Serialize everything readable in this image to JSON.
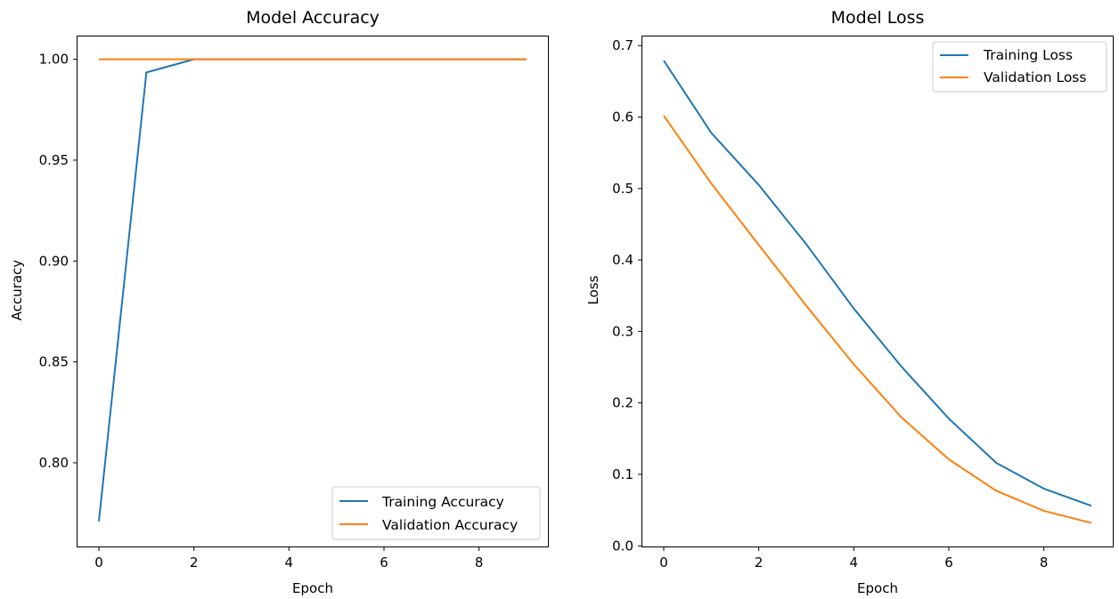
{
  "colors": {
    "training": "#1f77b4",
    "validation": "#ff7f0e"
  },
  "chart_data": [
    {
      "type": "line",
      "title": "Model Accuracy",
      "xlabel": "Epoch",
      "ylabel": "Accuracy",
      "xlim": [
        -0.45,
        9.45
      ],
      "ylim": [
        0.7585,
        1.0113
      ],
      "xticks": [
        0,
        2,
        4,
        6,
        8
      ],
      "xtick_labels": [
        "0",
        "2",
        "4",
        "6",
        "8"
      ],
      "yticks": [
        0.8,
        0.85,
        0.9,
        0.95,
        1.0
      ],
      "ytick_labels": [
        "0.80",
        "0.85",
        "0.90",
        "0.95",
        "1.00"
      ],
      "grid": false,
      "legend_position": "lower-right",
      "x": [
        0,
        1,
        2,
        3,
        4,
        5,
        6,
        7,
        8,
        9
      ],
      "series": [
        {
          "name": "Training Accuracy",
          "color_key": "training",
          "values": [
            0.771,
            0.9935,
            1.0,
            1.0,
            1.0,
            1.0,
            1.0,
            1.0,
            1.0,
            1.0
          ]
        },
        {
          "name": "Validation Accuracy",
          "color_key": "validation",
          "values": [
            1.0,
            1.0,
            1.0,
            1.0,
            1.0,
            1.0,
            1.0,
            1.0,
            1.0,
            1.0
          ]
        }
      ]
    },
    {
      "type": "line",
      "title": "Model Loss",
      "xlabel": "Epoch",
      "ylabel": "Loss",
      "xlim": [
        -0.45,
        9.45
      ],
      "ylim": [
        -0.0009,
        0.7127
      ],
      "xticks": [
        0,
        2,
        4,
        6,
        8
      ],
      "xtick_labels": [
        "0",
        "2",
        "4",
        "6",
        "8"
      ],
      "yticks": [
        0.0,
        0.1,
        0.2,
        0.3,
        0.4,
        0.5,
        0.6,
        0.7
      ],
      "ytick_labels": [
        "0.0",
        "0.1",
        "0.2",
        "0.3",
        "0.4",
        "0.5",
        "0.6",
        "0.7"
      ],
      "grid": false,
      "legend_position": "upper-right",
      "x": [
        0,
        1,
        2,
        3,
        4,
        5,
        6,
        7,
        8,
        9
      ],
      "series": [
        {
          "name": "Training Loss",
          "color_key": "training",
          "values": [
            0.679,
            0.578,
            0.505,
            0.422,
            0.332,
            0.251,
            0.178,
            0.116,
            0.08,
            0.056
          ]
        },
        {
          "name": "Validation Loss",
          "color_key": "validation",
          "values": [
            0.602,
            0.507,
            0.421,
            0.336,
            0.254,
            0.18,
            0.121,
            0.077,
            0.049,
            0.032
          ]
        }
      ]
    }
  ]
}
